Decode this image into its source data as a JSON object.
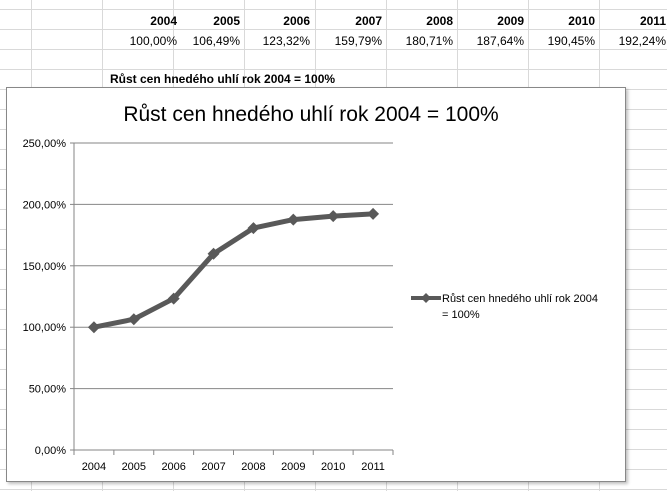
{
  "spreadsheet": {
    "years": [
      "2004",
      "2005",
      "2006",
      "2007",
      "2008",
      "2009",
      "2010",
      "2011"
    ],
    "values": [
      "100,00%",
      "106,49%",
      "123,32%",
      "159,79%",
      "180,71%",
      "187,64%",
      "190,45%",
      "192,24%"
    ],
    "caption": "Růst cen hnedého uhlí rok 2004 = 100%"
  },
  "chart_data": {
    "type": "line",
    "title": "Růst cen hnedého uhlí rok 2004 = 100%",
    "categories": [
      "2004",
      "2005",
      "2006",
      "2007",
      "2008",
      "2009",
      "2010",
      "2011"
    ],
    "series": [
      {
        "name": "Růst cen hnedého uhlí rok 2004 = 100%",
        "legend_lines": [
          "Růst cen hnedého uhlí rok 2004",
          "= 100%"
        ],
        "values": [
          100.0,
          106.49,
          123.32,
          159.79,
          180.71,
          187.64,
          190.45,
          192.24
        ],
        "color": "#595959",
        "marker": "diamond"
      }
    ],
    "ylim": [
      0,
      250
    ],
    "yticks": [
      0,
      50,
      100,
      150,
      200,
      250
    ],
    "ytick_labels": [
      "0,00%",
      "50,00%",
      "100,00%",
      "150,00%",
      "200,00%",
      "250,00%"
    ],
    "xlabel": "",
    "ylabel": "",
    "grid": true,
    "legend_position": "right"
  }
}
